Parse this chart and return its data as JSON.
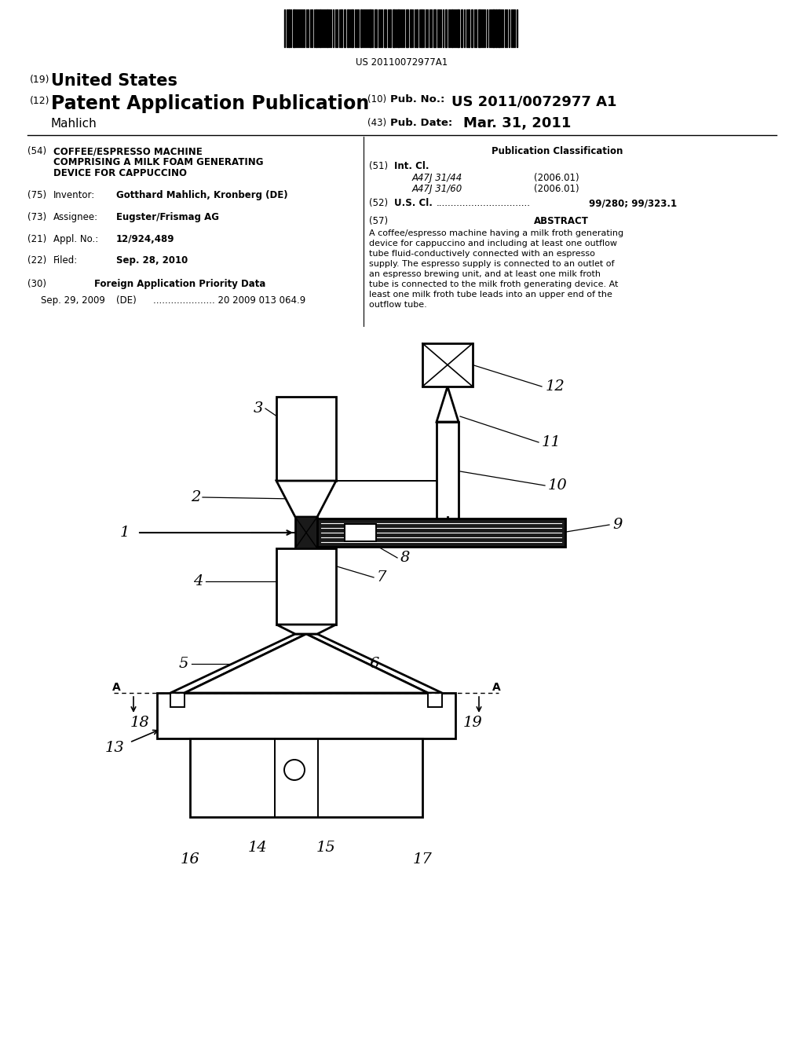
{
  "bg_color": "#ffffff",
  "barcode_text": "US 20110072977A1",
  "title_line1": "COFFEE/ESPRESSO MACHINE",
  "title_line2": "COMPRISING A MILK FOAM GENERATING",
  "title_line3": "DEVICE FOR CAPPUCCINO",
  "inventor_val": "Gotthard Mahlich, Kronberg (DE)",
  "assignee_val": "Eugster/Frismag AG",
  "appl_val": "12/924,489",
  "filed_val": "Sep. 28, 2010",
  "foreign_label": "Foreign Application Priority Data",
  "foreign_line": "Sep. 29, 2009   (DE) ..................... 20 2009 013 064.9",
  "pub_class_title": "Publication Classification",
  "intcl1": "A47J 31/44",
  "intcl1_year": "(2006.01)",
  "intcl2": "A47J 31/60",
  "intcl2_year": "(2006.01)",
  "uscl_val": "99/280; 99/323.1",
  "abstract_text": "A coffee/espresso machine having a milk froth generating device for cappuccino and including at least one outflow tube fluid-conductively connected with an espresso supply. The espresso supply is connected to an outlet of an espresso brewing unit, and at least one milk froth tube is connected to the milk froth generating device. At least one milk froth tube leads into an upper end of the outflow tube."
}
